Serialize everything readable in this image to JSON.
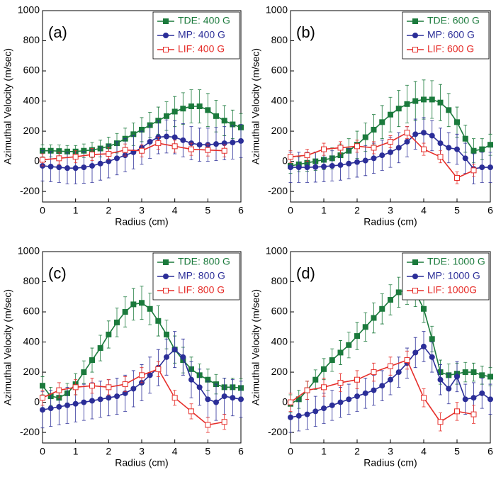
{
  "chart_data": [
    {
      "type": "line",
      "label": "(a)",
      "xlabel": "Radius (cm)",
      "ylabel": "Azimuthal Velocity (m/sec)",
      "xlim": [
        0,
        6
      ],
      "ylim": [
        -270,
        1000
      ],
      "xticks": [
        0,
        1,
        2,
        3,
        4,
        5,
        6
      ],
      "yticks": [
        -200,
        0,
        200,
        400,
        600,
        800,
        1000
      ],
      "legend": "upper right",
      "series": [
        {
          "name": "TDE: 400 G",
          "color": "#1b7a3c",
          "marker": "square",
          "x": [
            0,
            0.25,
            0.5,
            0.75,
            1,
            1.25,
            1.5,
            1.75,
            2,
            2.25,
            2.5,
            2.75,
            3,
            3.25,
            3.5,
            3.75,
            4,
            4.25,
            4.5,
            4.75,
            5,
            5.25,
            5.5,
            5.75,
            6
          ],
          "values": [
            70,
            70,
            68,
            65,
            65,
            70,
            75,
            85,
            100,
            120,
            150,
            180,
            210,
            240,
            270,
            300,
            330,
            350,
            365,
            365,
            340,
            300,
            270,
            245,
            225
          ],
          "errors": [
            40,
            40,
            40,
            40,
            40,
            45,
            50,
            55,
            60,
            65,
            70,
            75,
            80,
            85,
            90,
            95,
            100,
            105,
            110,
            110,
            110,
            105,
            100,
            95,
            90
          ]
        },
        {
          "name": "MP: 400 G",
          "color": "#2b2e98",
          "marker": "circle",
          "x": [
            0,
            0.25,
            0.5,
            0.75,
            1,
            1.25,
            1.5,
            1.75,
            2,
            2.25,
            2.5,
            2.75,
            3,
            3.25,
            3.5,
            3.75,
            4,
            4.25,
            4.5,
            4.75,
            5,
            5.25,
            5.5,
            5.75,
            6
          ],
          "values": [
            -30,
            -35,
            -40,
            -45,
            -45,
            -40,
            -30,
            -15,
            0,
            20,
            40,
            60,
            90,
            130,
            160,
            165,
            160,
            140,
            120,
            110,
            110,
            115,
            120,
            125,
            135
          ],
          "errors": [
            100,
            100,
            100,
            105,
            105,
            105,
            110,
            110,
            110,
            110,
            110,
            110,
            110,
            110,
            110,
            110,
            110,
            110,
            110,
            110,
            110,
            110,
            110,
            110,
            110
          ]
        },
        {
          "name": "LIF: 400 G",
          "color": "#e62e2a",
          "marker": "open-square",
          "x": [
            0,
            0.5,
            1,
            1.5,
            2,
            2.5,
            3,
            3.5,
            4,
            4.5,
            5,
            5.5
          ],
          "values": [
            10,
            20,
            30,
            45,
            50,
            75,
            70,
            120,
            100,
            80,
            75,
            70
          ],
          "errors": [
            40,
            40,
            40,
            40,
            40,
            40,
            40,
            40,
            40,
            40,
            40,
            40
          ]
        }
      ]
    },
    {
      "type": "line",
      "label": "(b)",
      "xlabel": "Radius (cm)",
      "ylabel": "Azimuthal Velocity (m/sec)",
      "xlim": [
        0,
        6
      ],
      "ylim": [
        -270,
        1000
      ],
      "xticks": [
        0,
        1,
        2,
        3,
        4,
        5,
        6
      ],
      "yticks": [
        -200,
        0,
        200,
        400,
        600,
        800,
        1000
      ],
      "legend": "upper right",
      "series": [
        {
          "name": "TDE: 600 G",
          "color": "#1b7a3c",
          "marker": "square",
          "x": [
            0,
            0.25,
            0.5,
            0.75,
            1,
            1.25,
            1.5,
            1.75,
            2,
            2.25,
            2.5,
            2.75,
            3,
            3.25,
            3.5,
            3.75,
            4,
            4.25,
            4.5,
            4.75,
            5,
            5.25,
            5.5,
            5.75,
            6
          ],
          "values": [
            -30,
            -20,
            -10,
            0,
            10,
            20,
            40,
            70,
            110,
            160,
            210,
            260,
            310,
            350,
            380,
            400,
            410,
            410,
            390,
            340,
            260,
            150,
            70,
            80,
            110
          ],
          "errors": [
            50,
            50,
            55,
            60,
            65,
            70,
            75,
            80,
            90,
            95,
            100,
            110,
            115,
            120,
            125,
            130,
            130,
            125,
            120,
            110,
            100,
            90,
            80,
            70,
            70
          ]
        },
        {
          "name": "MP: 600 G",
          "color": "#2b2e98",
          "marker": "circle",
          "x": [
            0,
            0.25,
            0.5,
            0.75,
            1,
            1.25,
            1.5,
            1.75,
            2,
            2.25,
            2.5,
            2.75,
            3,
            3.25,
            3.5,
            3.75,
            4,
            4.25,
            4.5,
            4.75,
            5,
            5.25,
            5.5,
            5.75,
            6
          ],
          "values": [
            -40,
            -40,
            -40,
            -38,
            -35,
            -30,
            -25,
            -15,
            -5,
            5,
            20,
            40,
            60,
            90,
            130,
            180,
            190,
            170,
            120,
            90,
            80,
            20,
            -50,
            -40,
            -40
          ],
          "errors": [
            100,
            100,
            100,
            100,
            100,
            100,
            100,
            100,
            100,
            100,
            100,
            100,
            100,
            100,
            100,
            100,
            100,
            100,
            100,
            100,
            100,
            100,
            100,
            100,
            100
          ]
        },
        {
          "name": "LIF: 600 G",
          "color": "#e62e2a",
          "marker": "open-square",
          "x": [
            0,
            0.5,
            1,
            1.5,
            2,
            2.5,
            3,
            3.5,
            4,
            4.5,
            5,
            5.5
          ],
          "values": [
            30,
            40,
            80,
            90,
            100,
            90,
            130,
            190,
            80,
            30,
            -110,
            -60
          ],
          "errors": [
            40,
            40,
            40,
            40,
            40,
            40,
            40,
            40,
            40,
            40,
            40,
            40
          ]
        }
      ]
    },
    {
      "type": "line",
      "label": "(c)",
      "xlabel": "Radius (cm)",
      "ylabel": "Azimuthal Velocity (m/sec)",
      "xlim": [
        0,
        6
      ],
      "ylim": [
        -270,
        1000
      ],
      "xticks": [
        0,
        1,
        2,
        3,
        4,
        5,
        6
      ],
      "yticks": [
        -200,
        0,
        200,
        400,
        600,
        800,
        1000
      ],
      "legend": "upper right",
      "series": [
        {
          "name": "TDE: 800 G",
          "color": "#1b7a3c",
          "marker": "square",
          "x": [
            0,
            0.25,
            0.5,
            0.75,
            1,
            1.25,
            1.5,
            1.75,
            2,
            2.25,
            2.5,
            2.75,
            3,
            3.25,
            3.5,
            3.75,
            4,
            4.25,
            4.5,
            4.75,
            5,
            5.25,
            5.5,
            5.75,
            6
          ],
          "values": [
            110,
            40,
            30,
            60,
            120,
            200,
            280,
            360,
            450,
            530,
            600,
            650,
            660,
            620,
            540,
            450,
            350,
            280,
            220,
            180,
            150,
            120,
            100,
            100,
            95
          ],
          "errors": [
            60,
            60,
            60,
            65,
            70,
            75,
            80,
            85,
            90,
            95,
            100,
            105,
            110,
            105,
            100,
            95,
            90,
            85,
            80,
            75,
            70,
            65,
            60,
            60,
            60
          ]
        },
        {
          "name": "MP: 800 G",
          "color": "#2b2e98",
          "marker": "circle",
          "x": [
            0,
            0.25,
            0.5,
            0.75,
            1,
            1.25,
            1.5,
            1.75,
            2,
            2.25,
            2.5,
            2.75,
            3,
            3.25,
            3.5,
            3.75,
            4,
            4.25,
            4.5,
            4.75,
            5,
            5.25,
            5.5,
            5.75,
            6
          ],
          "values": [
            -50,
            -40,
            -30,
            -20,
            -10,
            0,
            10,
            20,
            30,
            40,
            60,
            90,
            130,
            180,
            230,
            300,
            350,
            300,
            150,
            100,
            20,
            0,
            40,
            30,
            20
          ],
          "errors": [
            120,
            120,
            120,
            120,
            120,
            120,
            120,
            120,
            120,
            120,
            120,
            120,
            120,
            120,
            120,
            120,
            120,
            120,
            120,
            120,
            120,
            120,
            120,
            120,
            120
          ]
        },
        {
          "name": "LIF: 800 G",
          "color": "#e62e2a",
          "marker": "open-square",
          "x": [
            0,
            0.5,
            1,
            1.5,
            2,
            2.5,
            3,
            3.5,
            4,
            4.5,
            5,
            5.5
          ],
          "values": [
            30,
            80,
            100,
            110,
            100,
            120,
            180,
            220,
            30,
            -60,
            -150,
            -130
          ],
          "errors": [
            50,
            50,
            50,
            50,
            50,
            50,
            50,
            50,
            50,
            50,
            50,
            50
          ]
        }
      ]
    },
    {
      "type": "line",
      "label": "(d)",
      "xlabel": "Radius (cm)",
      "ylabel": "Azimuthal Velocity (m/sec)",
      "xlim": [
        0,
        6
      ],
      "ylim": [
        -270,
        1000
      ],
      "xticks": [
        0,
        1,
        2,
        3,
        4,
        5,
        6
      ],
      "yticks": [
        -200,
        0,
        200,
        400,
        600,
        800,
        1000
      ],
      "legend": "upper right",
      "series": [
        {
          "name": "TDE: 1000 G",
          "color": "#1b7a3c",
          "marker": "square",
          "x": [
            0,
            0.25,
            0.5,
            0.75,
            1,
            1.25,
            1.5,
            1.75,
            2,
            2.25,
            2.5,
            2.75,
            3,
            3.25,
            3.5,
            3.75,
            4,
            4.25,
            4.5,
            4.75,
            5,
            5.25,
            5.5,
            5.75,
            6
          ],
          "values": [
            -10,
            20,
            80,
            150,
            220,
            280,
            330,
            380,
            440,
            500,
            560,
            620,
            680,
            730,
            750,
            730,
            620,
            420,
            200,
            180,
            190,
            200,
            200,
            180,
            170
          ],
          "errors": [
            60,
            60,
            60,
            65,
            70,
            75,
            80,
            85,
            90,
            95,
            100,
            100,
            100,
            100,
            100,
            95,
            90,
            85,
            80,
            75,
            70,
            65,
            60,
            60,
            60
          ]
        },
        {
          "name": "MP: 1000 G",
          "color": "#2b2e98",
          "marker": "circle",
          "x": [
            0,
            0.25,
            0.5,
            0.75,
            1,
            1.25,
            1.5,
            1.75,
            2,
            2.25,
            2.5,
            2.75,
            3,
            3.25,
            3.5,
            3.75,
            4,
            4.25,
            4.5,
            4.75,
            5,
            5.25,
            5.5,
            5.75,
            6
          ],
          "values": [
            -100,
            -90,
            -80,
            -60,
            -40,
            -20,
            0,
            20,
            40,
            60,
            80,
            110,
            150,
            200,
            260,
            330,
            370,
            300,
            150,
            90,
            170,
            20,
            30,
            60,
            20
          ],
          "errors": [
            100,
            100,
            100,
            100,
            100,
            100,
            100,
            100,
            100,
            100,
            100,
            100,
            100,
            100,
            100,
            100,
            100,
            100,
            100,
            100,
            100,
            100,
            100,
            100,
            100
          ]
        },
        {
          "name": "LIF: 1000G",
          "color": "#e62e2a",
          "marker": "open-square",
          "x": [
            0,
            0.5,
            1,
            1.5,
            2,
            2.5,
            3,
            3.5,
            4,
            4.5,
            5,
            5.5
          ],
          "values": [
            0,
            80,
            100,
            130,
            150,
            200,
            240,
            280,
            30,
            -130,
            -60,
            -80
          ],
          "errors": [
            60,
            60,
            60,
            60,
            60,
            60,
            60,
            60,
            60,
            60,
            60,
            60
          ]
        }
      ]
    }
  ]
}
